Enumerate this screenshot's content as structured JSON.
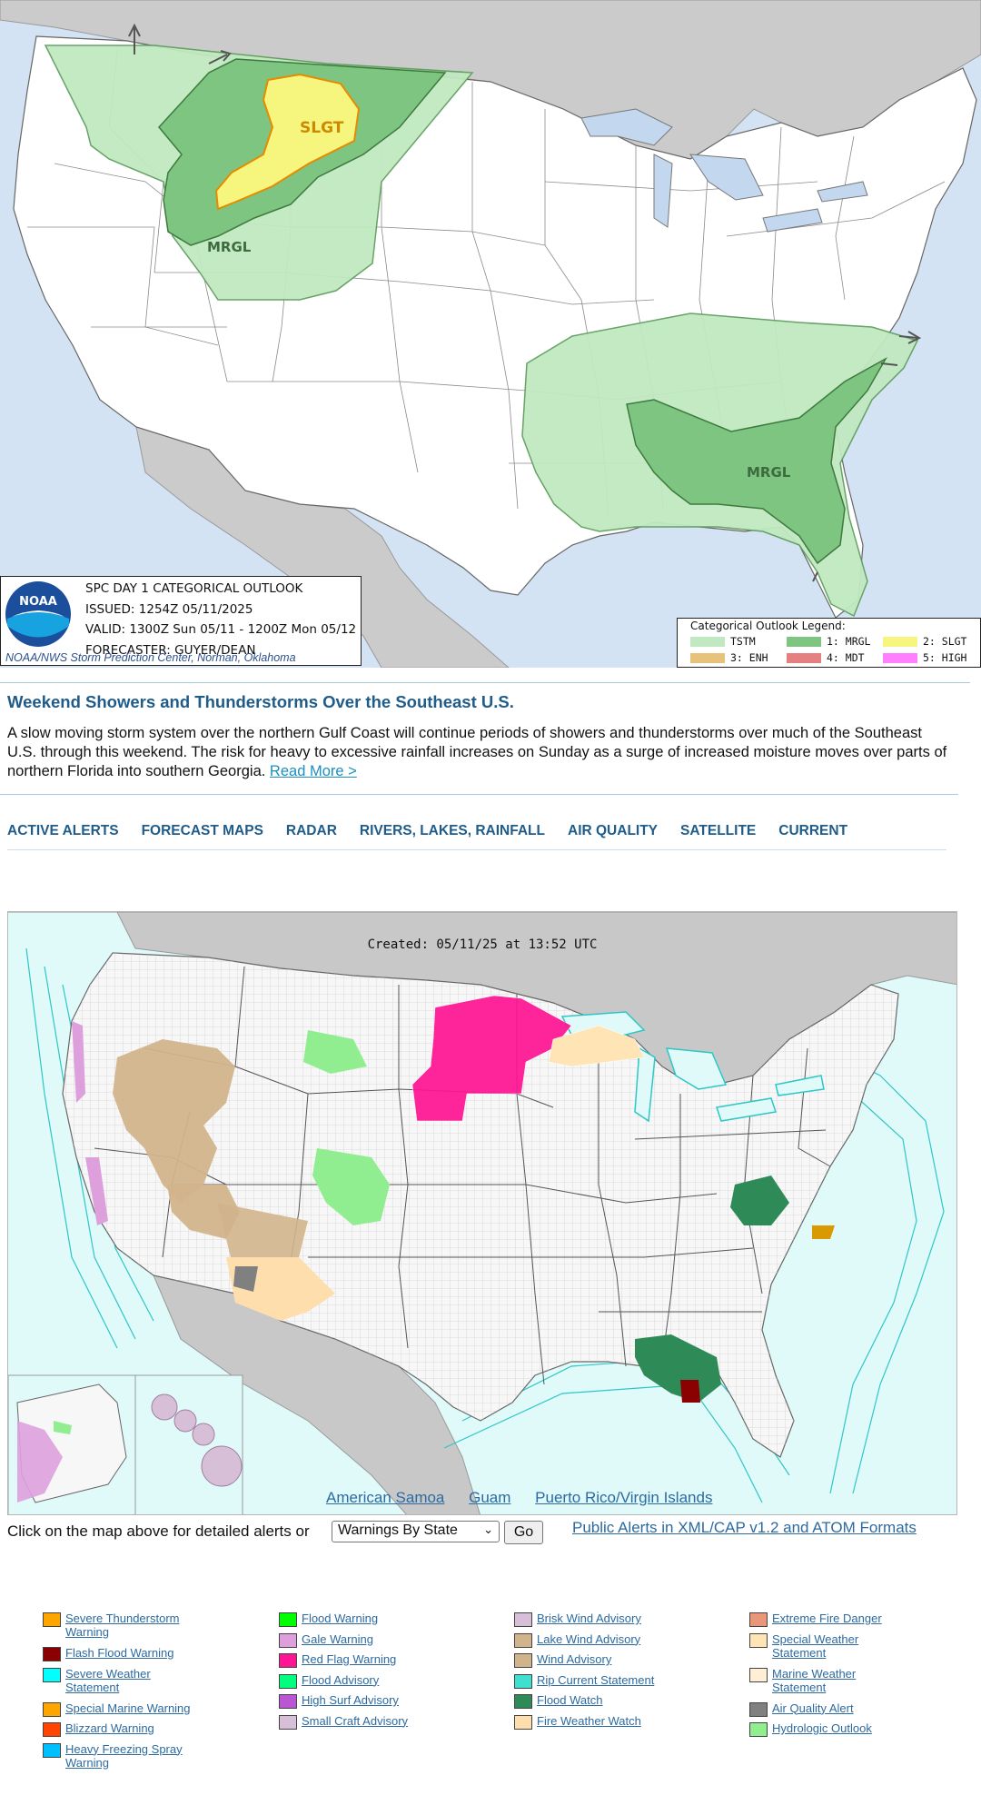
{
  "spc": {
    "caption": {
      "title": "SPC DAY 1 CATEGORICAL OUTLOOK",
      "issued": "ISSUED: 1254Z 05/11/2025",
      "valid": "VALID: 1300Z Sun 05/11 - 1200Z Mon 05/12",
      "forecaster": "FORECASTER: GUYER/DEAN",
      "credit": "NOAA/NWS Storm Prediction Center, Norman, Oklahoma",
      "logo_text": "NOAA"
    },
    "legend": {
      "title": "Categorical Outlook Legend:",
      "items": [
        {
          "label": "TSTM",
          "color": "#c1e9c1"
        },
        {
          "label": "1: MRGL",
          "color": "#7dc580"
        },
        {
          "label": "2: SLGT",
          "color": "#f6f67f"
        },
        {
          "label": "3: ENH",
          "color": "#e6c27a"
        },
        {
          "label": "4: MDT",
          "color": "#e67f7f"
        },
        {
          "label": "5: HIGH",
          "color": "#ff7fff"
        }
      ]
    },
    "area_labels": {
      "slgt": "SLGT",
      "mrgl_west": "MRGL",
      "mrgl_east": "MRGL"
    }
  },
  "article": {
    "headline": "Weekend Showers and Thunderstorms Over the Southeast U.S.",
    "summary": "A slow moving storm system over the northern Gulf Coast will continue periods of showers and thunderstorms over much of the Southeast U.S. through this weekend. The risk for heavy to excessive rainfall increases on Sunday as a surge of increased moisture moves over parts of northern Florida into southern Georgia.",
    "read_more": "Read More >"
  },
  "nav": [
    "ACTIVE ALERTS",
    "FORECAST MAPS",
    "RADAR",
    "RIVERS, LAKES, RAINFALL",
    "AIR QUALITY",
    "SATELLITE",
    "CURRENT"
  ],
  "alert_map": {
    "created": "Created: 05/11/25 at 13:52 UTC",
    "territories": [
      "American Samoa",
      "Guam",
      "Puerto Rico/Virgin Islands"
    ]
  },
  "controls": {
    "label": "Click on the map above for detailed alerts or",
    "select_value": "Warnings By State",
    "go": "Go",
    "xml_link": "Public Alerts in XML/CAP v1.2 and ATOM Formats"
  },
  "hazard_legend": [
    [
      {
        "label": "Severe Thunderstorm Warning",
        "color": "#ffa500"
      },
      {
        "label": "Flash Flood Warning",
        "color": "#8b0000"
      },
      {
        "label": "Severe Weather Statement",
        "color": "#00ffff"
      },
      {
        "label": "Special Marine Warning",
        "color": "#ffa500"
      },
      {
        "label": "Blizzard Warning",
        "color": "#ff4500"
      },
      {
        "label": "Heavy Freezing Spray Warning",
        "color": "#00bfff"
      }
    ],
    [
      {
        "label": "Flood Warning",
        "color": "#00ff00"
      },
      {
        "label": "Gale Warning",
        "color": "#dda0dd"
      },
      {
        "label": "Red Flag Warning",
        "color": "#ff1493"
      },
      {
        "label": "Flood Advisory",
        "color": "#00ff7f"
      },
      {
        "label": "High Surf Advisory",
        "color": "#ba55d3"
      },
      {
        "label": "Small Craft Advisory",
        "color": "#d8bfd8"
      }
    ],
    [
      {
        "label": "Brisk Wind Advisory",
        "color": "#d8bfd8"
      },
      {
        "label": "Lake Wind Advisory",
        "color": "#d2b48c"
      },
      {
        "label": "Wind Advisory",
        "color": "#d2b48c"
      },
      {
        "label": "Rip Current Statement",
        "color": "#40e0d0"
      },
      {
        "label": "Flood Watch",
        "color": "#2e8b57"
      },
      {
        "label": "Fire Weather Watch",
        "color": "#ffdead"
      }
    ],
    [
      {
        "label": "Extreme Fire Danger",
        "color": "#e9967a"
      },
      {
        "label": "Special Weather Statement",
        "color": "#ffe4b5"
      },
      {
        "label": "Marine Weather Statement",
        "color": "#ffefd5"
      },
      {
        "label": "Air Quality Alert",
        "color": "#808080"
      },
      {
        "label": "Hydrologic Outlook",
        "color": "#90ee90"
      }
    ]
  ]
}
